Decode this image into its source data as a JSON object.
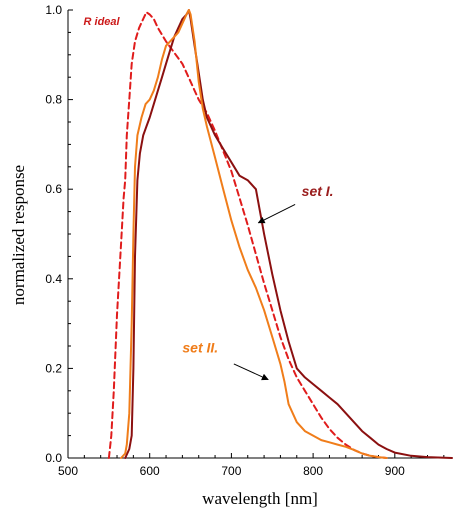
{
  "chart_data": {
    "type": "line",
    "xlabel": "wavelength [nm]",
    "ylabel": "normalized response",
    "xlim": [
      500,
      970
    ],
    "ylim": [
      0,
      1.0
    ],
    "x_ticks": [
      500,
      600,
      700,
      800,
      900
    ],
    "y_ticks": [
      0.0,
      0.2,
      0.4,
      0.6,
      0.8,
      1.0
    ],
    "x_tick_labels": [
      "500",
      "600",
      "700",
      "800",
      "900"
    ],
    "y_tick_labels": [
      "0.0",
      "0.2",
      "0.4",
      "0.6",
      "0.8",
      "1.0"
    ],
    "grid": false,
    "series": [
      {
        "name": "R ideal",
        "color": "#e01c1c",
        "dash": true,
        "x": [
          550,
          553,
          556,
          560,
          565,
          568,
          570,
          572,
          575,
          578,
          582,
          587,
          592,
          596,
          600,
          605,
          610,
          620,
          630,
          640,
          645,
          650,
          655,
          660,
          670,
          680,
          690,
          700,
          710,
          720,
          730,
          740,
          750,
          760,
          770,
          780,
          790,
          800,
          810,
          820,
          830,
          840,
          850,
          860,
          870,
          880,
          890
        ],
        "y": [
          0.0,
          0.05,
          0.15,
          0.32,
          0.48,
          0.58,
          0.62,
          0.72,
          0.8,
          0.88,
          0.93,
          0.96,
          0.98,
          0.995,
          0.99,
          0.98,
          0.96,
          0.93,
          0.905,
          0.88,
          0.86,
          0.84,
          0.82,
          0.8,
          0.77,
          0.73,
          0.685,
          0.64,
          0.58,
          0.52,
          0.455,
          0.39,
          0.33,
          0.27,
          0.22,
          0.18,
          0.15,
          0.12,
          0.09,
          0.065,
          0.045,
          0.03,
          0.018,
          0.01,
          0.005,
          0.002,
          0.0
        ]
      },
      {
        "name": "set I.",
        "color": "#8b1010",
        "dash": false,
        "x": [
          570,
          575,
          578,
          580,
          582,
          585,
          588,
          592,
          596,
          600,
          605,
          610,
          615,
          620,
          625,
          630,
          635,
          640,
          645,
          648,
          650,
          655,
          660,
          665,
          670,
          680,
          690,
          700,
          710,
          720,
          725,
          730,
          735,
          740,
          750,
          760,
          770,
          780,
          790,
          800,
          810,
          820,
          830,
          840,
          850,
          860,
          870,
          880,
          890,
          900,
          920,
          940,
          970
        ],
        "y": [
          0.0,
          0.02,
          0.05,
          0.2,
          0.45,
          0.62,
          0.68,
          0.72,
          0.74,
          0.76,
          0.79,
          0.82,
          0.85,
          0.88,
          0.91,
          0.94,
          0.96,
          0.98,
          0.99,
          1.0,
          0.98,
          0.92,
          0.86,
          0.8,
          0.76,
          0.72,
          0.69,
          0.66,
          0.63,
          0.62,
          0.61,
          0.6,
          0.55,
          0.5,
          0.41,
          0.33,
          0.26,
          0.2,
          0.18,
          0.165,
          0.15,
          0.135,
          0.12,
          0.1,
          0.08,
          0.06,
          0.045,
          0.03,
          0.02,
          0.012,
          0.005,
          0.002,
          0.0
        ]
      },
      {
        "name": "set II.",
        "color": "#f07d1a",
        "dash": false,
        "x": [
          565,
          570,
          572,
          575,
          578,
          580,
          582,
          585,
          590,
          595,
          600,
          605,
          610,
          615,
          620,
          625,
          630,
          635,
          640,
          645,
          648,
          650,
          655,
          660,
          665,
          670,
          680,
          690,
          700,
          710,
          720,
          730,
          740,
          750,
          760,
          765,
          770,
          780,
          790,
          800,
          810,
          820,
          830,
          840,
          850,
          860,
          870,
          880,
          890
        ],
        "y": [
          0.0,
          0.01,
          0.03,
          0.1,
          0.3,
          0.5,
          0.65,
          0.72,
          0.76,
          0.79,
          0.8,
          0.82,
          0.85,
          0.89,
          0.92,
          0.93,
          0.94,
          0.95,
          0.97,
          0.99,
          1.0,
          0.99,
          0.93,
          0.84,
          0.78,
          0.74,
          0.67,
          0.6,
          0.53,
          0.47,
          0.42,
          0.38,
          0.33,
          0.27,
          0.21,
          0.17,
          0.12,
          0.08,
          0.06,
          0.05,
          0.04,
          0.035,
          0.03,
          0.025,
          0.018,
          0.01,
          0.005,
          0.002,
          0.0
        ]
      }
    ],
    "annotations": [
      {
        "text": "R ideal",
        "x": 519,
        "y": 0.967,
        "color": "#cc1a1a",
        "size": 11,
        "arrow": false
      },
      {
        "text": "set I.",
        "x": 786,
        "y": 0.585,
        "color": "#9a1d1d",
        "size": 14,
        "arrow": true,
        "arrow_to_x": 733,
        "arrow_to_y": 0.525,
        "arrow_from_x": 778,
        "arrow_from_y": 0.566
      },
      {
        "text": "set II.",
        "x": 640,
        "y": 0.235,
        "color": "#f07d1a",
        "size": 14,
        "arrow": true,
        "arrow_to_x": 745,
        "arrow_to_y": 0.175,
        "arrow_from_x": 703,
        "arrow_from_y": 0.21
      }
    ]
  }
}
